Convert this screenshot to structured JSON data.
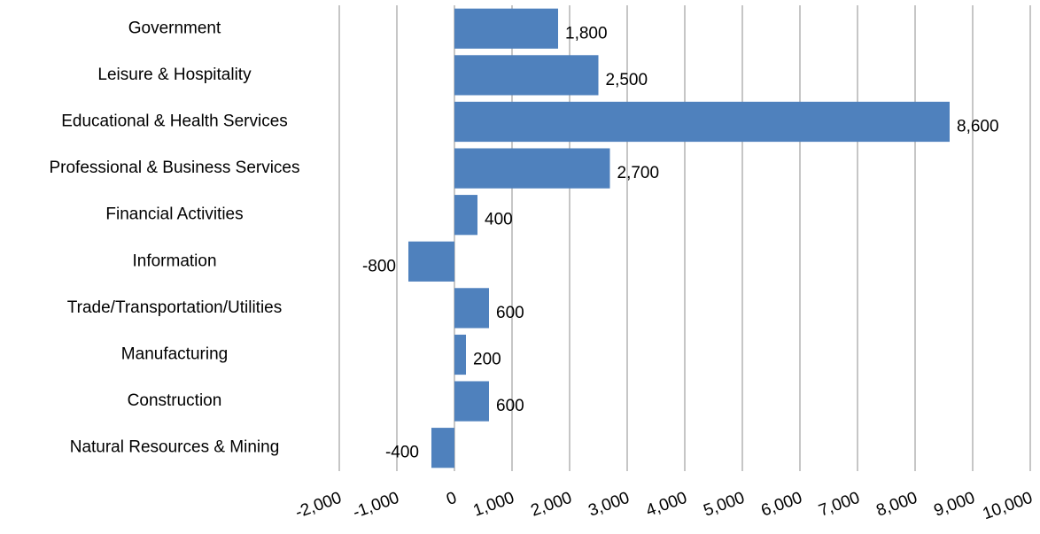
{
  "chart_data": {
    "type": "bar",
    "orientation": "horizontal",
    "categories": [
      "Government",
      "Leisure & Hospitality",
      "Educational & Health Services",
      "Professional & Business Services",
      "Financial Activities",
      "Information",
      "Trade/Transportation/Utilities",
      "Manufacturing",
      "Construction",
      "Natural Resources & Mining"
    ],
    "values": [
      1800,
      2500,
      8600,
      2700,
      400,
      -800,
      600,
      200,
      600,
      -400
    ],
    "value_labels": [
      "1,800",
      "2,500",
      "8,600",
      "2,700",
      "400",
      "-800",
      "600",
      "200",
      "600",
      "-400"
    ],
    "color": "#4f81bd",
    "xlim": [
      -2000,
      10000
    ],
    "xticks": [
      {
        "value": -2000,
        "label": "-2,000"
      },
      {
        "value": -1000,
        "label": "-1,000"
      },
      0,
      {
        "value": 1000,
        "label": "1,000"
      },
      {
        "value": 2000,
        "label": "2,000"
      },
      {
        "value": 3000,
        "label": "3,000"
      },
      {
        "value": 4000,
        "label": "4,000"
      },
      {
        "value": 5000,
        "label": "5,000"
      },
      {
        "value": 6000,
        "label": "6,000"
      },
      {
        "value": 7000,
        "label": "7,000"
      },
      {
        "value": 8000,
        "label": "8,000"
      },
      {
        "value": 9000,
        "label": "9,000"
      },
      {
        "value": 10000,
        "label": "10,000"
      }
    ],
    "grid": true
  }
}
